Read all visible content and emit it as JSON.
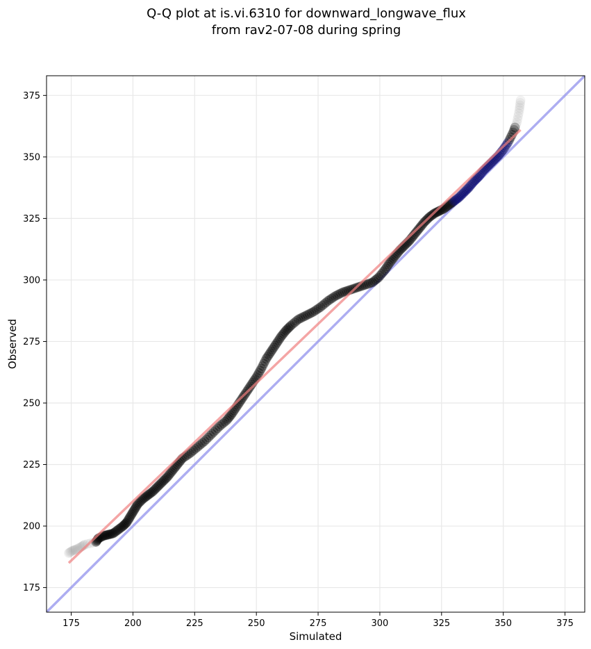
{
  "chart_data": {
    "type": "scatter",
    "title": "Q-Q plot at is.vi.6310 for downward_longwave_flux",
    "subtitle": "from rav2-07-08 during spring",
    "xlabel": "Simulated",
    "ylabel": "Observed",
    "xlim": [
      165,
      383
    ],
    "ylim": [
      165,
      383
    ],
    "xticks": [
      175,
      200,
      225,
      250,
      275,
      300,
      325,
      350,
      375
    ],
    "yticks": [
      175,
      200,
      225,
      250,
      275,
      300,
      325,
      350,
      375
    ],
    "grid": true,
    "colors": {
      "points": "#000000",
      "tail_points": "#9a9a9a",
      "fit_line": "#f08080",
      "one_to_one_line": "#9999ee",
      "high_points": "#000066"
    },
    "one_to_one_line": {
      "x": [
        165,
        383
      ],
      "y": [
        165,
        383
      ]
    },
    "fit_line": {
      "x": [
        174,
        357
      ],
      "y": [
        185,
        361
      ]
    },
    "points": [
      {
        "x": 174.0,
        "y": 189.0
      },
      {
        "x": 175.5,
        "y": 190.0
      },
      {
        "x": 177.0,
        "y": 190.5
      },
      {
        "x": 179.0,
        "y": 191.5
      },
      {
        "x": 180.5,
        "y": 192.5
      },
      {
        "x": 185.0,
        "y": 193.5
      },
      {
        "x": 186.0,
        "y": 195.0
      },
      {
        "x": 188.0,
        "y": 196.0
      },
      {
        "x": 190.0,
        "y": 196.5
      },
      {
        "x": 192.0,
        "y": 197.0
      },
      {
        "x": 194.0,
        "y": 198.5
      },
      {
        "x": 196.0,
        "y": 200.0
      },
      {
        "x": 197.5,
        "y": 201.5
      },
      {
        "x": 199.0,
        "y": 204.0
      },
      {
        "x": 200.5,
        "y": 206.5
      },
      {
        "x": 202.0,
        "y": 209.0
      },
      {
        "x": 204.0,
        "y": 211.0
      },
      {
        "x": 206.0,
        "y": 212.5
      },
      {
        "x": 208.0,
        "y": 214.0
      },
      {
        "x": 210.0,
        "y": 216.0
      },
      {
        "x": 212.0,
        "y": 218.0
      },
      {
        "x": 214.0,
        "y": 220.0
      },
      {
        "x": 216.0,
        "y": 222.5
      },
      {
        "x": 218.0,
        "y": 225.0
      },
      {
        "x": 220.0,
        "y": 227.5
      },
      {
        "x": 223.0,
        "y": 229.5
      },
      {
        "x": 226.0,
        "y": 232.0
      },
      {
        "x": 229.0,
        "y": 234.5
      },
      {
        "x": 232.0,
        "y": 237.5
      },
      {
        "x": 235.0,
        "y": 240.5
      },
      {
        "x": 238.0,
        "y": 243.0
      },
      {
        "x": 240.0,
        "y": 245.5
      },
      {
        "x": 242.0,
        "y": 248.5
      },
      {
        "x": 244.0,
        "y": 251.5
      },
      {
        "x": 246.0,
        "y": 254.5
      },
      {
        "x": 248.0,
        "y": 257.5
      },
      {
        "x": 250.0,
        "y": 260.5
      },
      {
        "x": 252.0,
        "y": 264.0
      },
      {
        "x": 254.0,
        "y": 268.0
      },
      {
        "x": 256.0,
        "y": 271.0
      },
      {
        "x": 258.0,
        "y": 274.0
      },
      {
        "x": 260.0,
        "y": 277.0
      },
      {
        "x": 262.0,
        "y": 279.5
      },
      {
        "x": 264.0,
        "y": 281.5
      },
      {
        "x": 267.0,
        "y": 284.0
      },
      {
        "x": 270.0,
        "y": 285.5
      },
      {
        "x": 273.0,
        "y": 287.0
      },
      {
        "x": 276.0,
        "y": 289.0
      },
      {
        "x": 279.0,
        "y": 291.5
      },
      {
        "x": 282.0,
        "y": 293.5
      },
      {
        "x": 285.0,
        "y": 295.0
      },
      {
        "x": 288.0,
        "y": 296.0
      },
      {
        "x": 291.0,
        "y": 297.0
      },
      {
        "x": 294.0,
        "y": 298.0
      },
      {
        "x": 297.0,
        "y": 299.0
      },
      {
        "x": 299.5,
        "y": 301.0
      },
      {
        "x": 302.0,
        "y": 304.0
      },
      {
        "x": 304.0,
        "y": 307.0
      },
      {
        "x": 306.0,
        "y": 309.5
      },
      {
        "x": 308.0,
        "y": 312.0
      },
      {
        "x": 310.0,
        "y": 314.0
      },
      {
        "x": 312.0,
        "y": 316.0
      },
      {
        "x": 314.0,
        "y": 318.5
      },
      {
        "x": 316.0,
        "y": 321.0
      },
      {
        "x": 318.0,
        "y": 323.5
      },
      {
        "x": 320.0,
        "y": 325.5
      },
      {
        "x": 322.0,
        "y": 327.0
      },
      {
        "x": 324.0,
        "y": 328.0
      },
      {
        "x": 326.0,
        "y": 329.0
      },
      {
        "x": 328.0,
        "y": 330.5
      },
      {
        "x": 330.0,
        "y": 332.0
      },
      {
        "x": 332.0,
        "y": 333.5
      },
      {
        "x": 334.0,
        "y": 335.5
      },
      {
        "x": 336.0,
        "y": 337.5
      },
      {
        "x": 338.0,
        "y": 340.0
      },
      {
        "x": 340.0,
        "y": 342.0
      },
      {
        "x": 342.0,
        "y": 344.5
      },
      {
        "x": 344.0,
        "y": 346.5
      },
      {
        "x": 346.0,
        "y": 348.5
      },
      {
        "x": 348.0,
        "y": 350.5
      },
      {
        "x": 350.0,
        "y": 353.0
      },
      {
        "x": 352.0,
        "y": 356.0
      },
      {
        "x": 354.0,
        "y": 360.0
      },
      {
        "x": 355.5,
        "y": 364.0
      },
      {
        "x": 356.5,
        "y": 369.0
      },
      {
        "x": 357.0,
        "y": 373.0
      }
    ]
  }
}
